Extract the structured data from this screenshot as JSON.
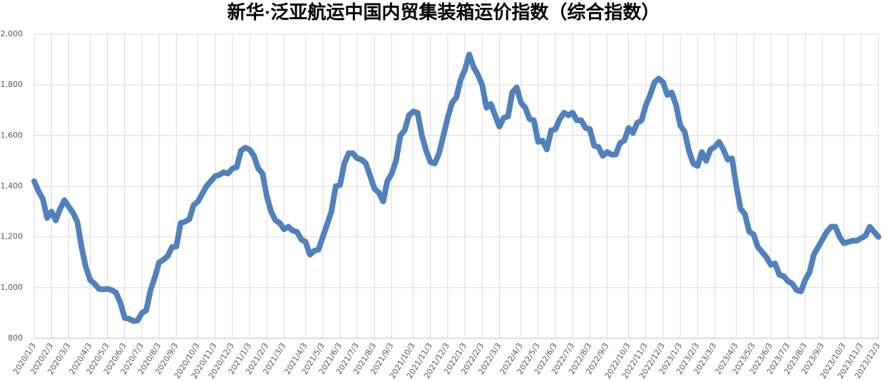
{
  "chart_data": {
    "type": "line",
    "title": "新华·泛亚航运中国内贸集装箱运价指数（综合指数）",
    "categories": [
      "2020/1/3",
      null,
      null,
      null,
      "2020/2/3",
      null,
      null,
      null,
      "2020/3/3",
      null,
      null,
      null,
      null,
      "2020/4/3",
      null,
      null,
      null,
      "2020/5/3",
      null,
      null,
      null,
      "2020/6/3",
      null,
      null,
      null,
      "2020/7/3",
      null,
      null,
      null,
      "2020/8/3",
      null,
      null,
      null,
      "2020/9/3",
      null,
      null,
      null,
      null,
      "2020/10/3",
      null,
      null,
      null,
      "2020/11/3",
      null,
      null,
      null,
      "2020/12/3",
      null,
      null,
      null,
      "2021/1/3",
      null,
      null,
      null,
      "2021/2/3",
      null,
      null,
      null,
      "2021/3/3",
      null,
      null,
      null,
      null,
      "2021/4/3",
      null,
      null,
      null,
      "2021/5/3",
      null,
      null,
      null,
      "2021/6/3",
      null,
      null,
      null,
      "2021/7/3",
      null,
      null,
      null,
      "2021/8/3",
      null,
      null,
      null,
      "2021/9/3",
      null,
      null,
      null,
      null,
      "2021/10/3",
      null,
      null,
      null,
      "2021/11/3",
      null,
      null,
      null,
      "2021/12/3",
      null,
      null,
      null,
      "2022/1/3",
      null,
      null,
      null,
      "2022/2/3",
      null,
      null,
      null,
      "2022/3/3",
      null,
      null,
      null,
      null,
      "2022/4/3",
      null,
      null,
      null,
      "2022/5/3",
      null,
      null,
      null,
      "2022/6/3",
      null,
      null,
      null,
      "2022/7/3",
      null,
      null,
      null,
      "2022/8/3",
      null,
      null,
      null,
      "2022/9/3",
      null,
      null,
      null,
      null,
      "2022/10/3",
      null,
      null,
      null,
      "2022/11/3",
      null,
      null,
      null,
      "2022/12/3",
      null,
      null,
      null,
      "2023/1/3",
      null,
      null,
      null,
      "2023/2/3",
      null,
      null,
      null,
      "2023/3/3",
      null,
      null,
      null,
      null,
      "2023/4/3",
      null,
      null,
      null,
      "2023/5/3",
      null,
      null,
      null,
      "2023/6/3",
      null,
      null,
      null,
      "2023/7/3",
      null,
      null,
      null,
      "2023/8/3",
      null,
      null,
      null,
      "2023/9/3",
      null,
      null,
      null,
      null,
      "2023/10/3",
      null,
      null,
      null,
      "2023/11/3",
      null,
      null,
      null,
      "2023/12/3"
    ],
    "values": [
      1420,
      1380,
      1350,
      1275,
      1300,
      1265,
      1310,
      1345,
      1320,
      1295,
      1260,
      1160,
      1080,
      1030,
      1015,
      995,
      993,
      995,
      990,
      980,
      940,
      880,
      877,
      868,
      870,
      900,
      910,
      990,
      1040,
      1100,
      1110,
      1125,
      1160,
      1162,
      1255,
      1260,
      1270,
      1325,
      1340,
      1370,
      1400,
      1420,
      1440,
      1445,
      1455,
      1450,
      1470,
      1475,
      1540,
      1552,
      1545,
      1520,
      1470,
      1450,
      1360,
      1300,
      1265,
      1255,
      1230,
      1240,
      1225,
      1220,
      1190,
      1180,
      1130,
      1145,
      1150,
      1200,
      1250,
      1300,
      1400,
      1405,
      1490,
      1530,
      1530,
      1510,
      1505,
      1490,
      1440,
      1390,
      1375,
      1340,
      1420,
      1450,
      1500,
      1600,
      1620,
      1680,
      1695,
      1690,
      1600,
      1540,
      1495,
      1490,
      1530,
      1600,
      1670,
      1730,
      1750,
      1820,
      1860,
      1920,
      1870,
      1840,
      1800,
      1710,
      1725,
      1680,
      1635,
      1670,
      1675,
      1770,
      1790,
      1730,
      1710,
      1665,
      1660,
      1575,
      1580,
      1545,
      1620,
      1625,
      1665,
      1690,
      1680,
      1690,
      1660,
      1660,
      1630,
      1625,
      1560,
      1555,
      1520,
      1535,
      1525,
      1525,
      1570,
      1580,
      1630,
      1610,
      1650,
      1660,
      1720,
      1760,
      1810,
      1825,
      1810,
      1760,
      1770,
      1720,
      1640,
      1615,
      1540,
      1490,
      1480,
      1535,
      1500,
      1545,
      1555,
      1575,
      1545,
      1505,
      1510,
      1400,
      1310,
      1290,
      1220,
      1210,
      1160,
      1140,
      1120,
      1090,
      1095,
      1050,
      1045,
      1025,
      1015,
      990,
      985,
      1030,
      1060,
      1130,
      1160,
      1190,
      1220,
      1240,
      1240,
      1200,
      1175,
      1180,
      1185,
      1185,
      1195,
      1205,
      1240,
      1220,
      1200
    ],
    "color": "#4f81bd",
    "ylim": [
      800,
      2000
    ],
    "yticks": [
      800,
      {
        "value": 1000,
        "label": "1,000"
      },
      {
        "value": 1200,
        "label": "1,200"
      },
      {
        "value": 1400,
        "label": "1,400"
      },
      {
        "value": 1600,
        "label": "1,600"
      },
      {
        "value": 1800,
        "label": "1,800"
      },
      {
        "value": 2000,
        "label": "2,000"
      }
    ],
    "grid": true
  }
}
